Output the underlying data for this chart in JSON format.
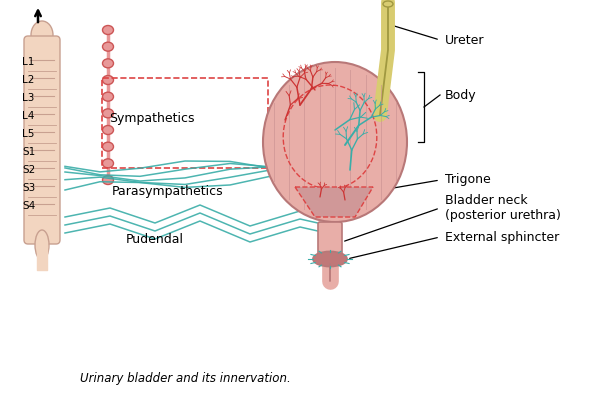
{
  "bg_color": "#ffffff",
  "spine_color": "#f2d5c0",
  "spine_stroke": "#c8a090",
  "cord_color": "#e89898",
  "cord_dark": "#cc5555",
  "teal_color": "#3aada8",
  "dashed_color": "#dd4444",
  "bladder_fill": "#e8aea8",
  "bladder_stroke": "#b87878",
  "bladder_line_color": "#c89090",
  "ureter_fill": "#d8cc70",
  "ureter_stroke": "#a09840",
  "red_nerve": "#cc3333",
  "labels_L": [
    "L1",
    "L2",
    "L3",
    "L4",
    "L5"
  ],
  "labels_S": [
    "S1",
    "S2",
    "S3",
    "S4"
  ],
  "label_sympathetics": "Sympathetics",
  "label_parasympathetics": "Parasympathetics",
  "label_pudendal": "Pudendal",
  "label_ureter": "Ureter",
  "label_body": "Body",
  "label_trigone": "Trigone",
  "label_bladder_neck": "Bladder neck\n(posterior urethra)",
  "label_ext_sphincter": "External sphincter",
  "caption": "Urinary bladder and its innervation.",
  "lbl_fontsize": 9,
  "small_fontsize": 7.5
}
